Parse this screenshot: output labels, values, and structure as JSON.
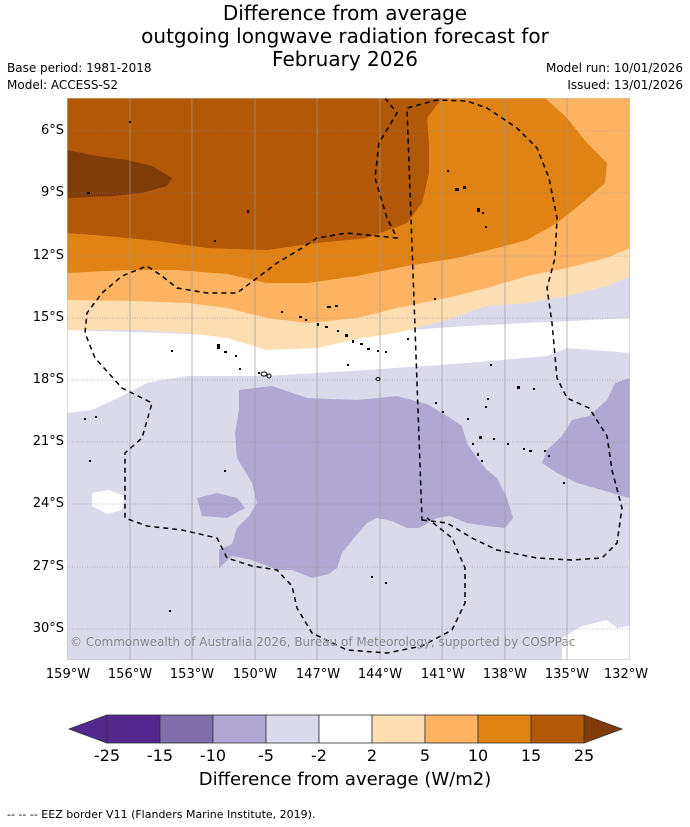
{
  "title": {
    "line1": "Difference from average",
    "line2": "outgoing longwave radiation forecast for",
    "line3": "February 2026"
  },
  "meta": {
    "base_period": "Base period: 1981-2018",
    "model": "Model: ACCESS-S2",
    "model_run": "Model run: 10/01/2026",
    "issued": "Issued: 13/01/2026"
  },
  "map": {
    "copyright": "© Commonwealth of Australia 2026, Bureau of Meteorology, supported by COSPPac",
    "lat_labels": [
      "6°S",
      "9°S",
      "12°S",
      "15°S",
      "18°S",
      "21°S",
      "24°S",
      "27°S",
      "30°S"
    ],
    "lon_labels": [
      "159°W",
      "156°W",
      "153°W",
      "150°W",
      "147°W",
      "144°W",
      "141°W",
      "138°W",
      "135°W",
      "132°W"
    ]
  },
  "colorbar": {
    "ticks": [
      "-25",
      "-15",
      "-10",
      "-5",
      "-2",
      "2",
      "5",
      "10",
      "15",
      "25"
    ],
    "colors": [
      "#54278f",
      "#7e6fab",
      "#b0a8d2",
      "#dadaeb",
      "#ffffff",
      "#fddeb3",
      "#fdb462",
      "#e08214",
      "#b35806",
      "#7f3b08"
    ],
    "title": "Difference from average (W/m2)"
  },
  "footer": {
    "legend": "--  --  -- EEZ border V11 (Flanders Marine Institute, 2019)."
  }
}
